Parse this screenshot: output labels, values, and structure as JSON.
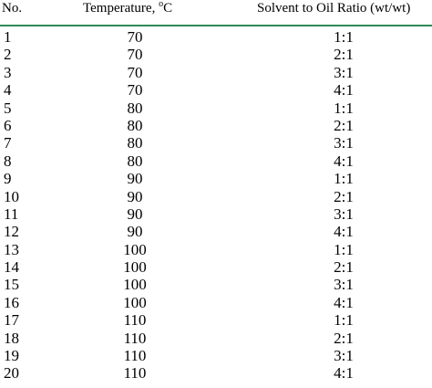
{
  "table": {
    "headers": {
      "no": "No.",
      "temperature": "Temperature, ",
      "temperature_unit_sup": "o",
      "temperature_unit": "C",
      "ratio": "Solvent to Oil Ratio (wt/wt)"
    },
    "rows": [
      {
        "no": "1",
        "temperature": "70",
        "ratio": "1:1"
      },
      {
        "no": "2",
        "temperature": "70",
        "ratio": "2:1"
      },
      {
        "no": "3",
        "temperature": "70",
        "ratio": "3:1"
      },
      {
        "no": "4",
        "temperature": "70",
        "ratio": "4:1"
      },
      {
        "no": "5",
        "temperature": "80",
        "ratio": "1:1"
      },
      {
        "no": "6",
        "temperature": "80",
        "ratio": "2:1"
      },
      {
        "no": "7",
        "temperature": "80",
        "ratio": "3:1"
      },
      {
        "no": "8",
        "temperature": "80",
        "ratio": "4:1"
      },
      {
        "no": "9",
        "temperature": "90",
        "ratio": "1:1"
      },
      {
        "no": "10",
        "temperature": "90",
        "ratio": "2:1"
      },
      {
        "no": "11",
        "temperature": "90",
        "ratio": "3:1"
      },
      {
        "no": "12",
        "temperature": "90",
        "ratio": "4:1"
      },
      {
        "no": "13",
        "temperature": "100",
        "ratio": "1:1"
      },
      {
        "no": "14",
        "temperature": "100",
        "ratio": "2:1"
      },
      {
        "no": "15",
        "temperature": "100",
        "ratio": "3:1"
      },
      {
        "no": "16",
        "temperature": "100",
        "ratio": "4:1"
      },
      {
        "no": "17",
        "temperature": "110",
        "ratio": "1:1"
      },
      {
        "no": "18",
        "temperature": "110",
        "ratio": "2:1"
      },
      {
        "no": "19",
        "temperature": "110",
        "ratio": "3:1"
      },
      {
        "no": "20",
        "temperature": "110",
        "ratio": "4:1"
      }
    ]
  },
  "colors": {
    "header_rule": "#2e8b57"
  }
}
